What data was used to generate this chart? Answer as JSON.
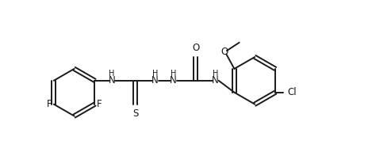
{
  "bg_color": "#ffffff",
  "line_color": "#1a1a1a",
  "line_width": 1.4,
  "font_size": 8.5,
  "fig_width": 4.69,
  "fig_height": 1.92,
  "dpi": 100,
  "xlim": [
    0,
    9.5
  ],
  "ylim": [
    -1.8,
    2.8
  ]
}
